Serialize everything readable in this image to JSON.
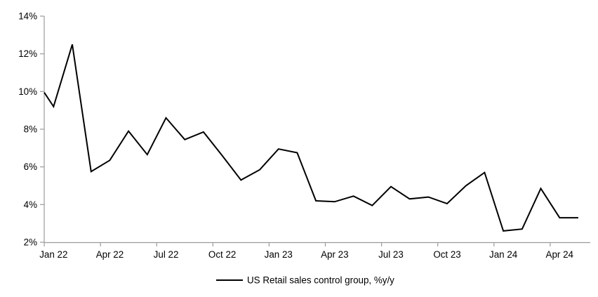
{
  "chart_data": {
    "type": "line",
    "x": [
      "Jan 22",
      "Feb 22",
      "Mar 22",
      "Apr 22",
      "May 22",
      "Jun 22",
      "Jul 22",
      "Aug 22",
      "Sep 22",
      "Oct 22",
      "Nov 22",
      "Dec 22",
      "Jan 23",
      "Feb 23",
      "Mar 23",
      "Apr 23",
      "May 23",
      "Jun 23",
      "Jul 23",
      "Aug 23",
      "Sep 23",
      "Oct 23",
      "Nov 23",
      "Dec 23",
      "Jan 24",
      "Feb 24",
      "Mar 24",
      "Apr 24",
      "May 24"
    ],
    "series": [
      {
        "name": "US Retail sales control group, %y/y",
        "color": "#000000",
        "values": [
          9.2,
          12.5,
          5.75,
          6.35,
          7.9,
          6.65,
          8.6,
          7.45,
          7.85,
          6.6,
          5.3,
          5.85,
          6.95,
          6.75,
          4.2,
          4.15,
          4.45,
          3.95,
          4.95,
          4.3,
          4.4,
          4.05,
          5.0,
          5.7,
          2.6,
          2.7,
          4.85,
          3.3,
          3.3
        ]
      }
    ],
    "clipped_start_value_at_axis": 9.95,
    "y_axis": {
      "min": 2,
      "max": 14,
      "step": 2,
      "tick_labels": [
        "2%",
        "4%",
        "6%",
        "8%",
        "10%",
        "12%",
        "14%"
      ]
    },
    "x_axis": {
      "tick_labels": [
        "Jan 22",
        "Apr 22",
        "Jul 22",
        "Oct 22",
        "Jan 23",
        "Apr 23",
        "Jul 23",
        "Oct 23",
        "Jan 24",
        "Apr 24"
      ],
      "months_per_tick": 3,
      "tick_style": "between-categories"
    },
    "legend": {
      "label": "US Retail sales control group, %y/y",
      "position": "bottom-center"
    },
    "grid": "off",
    "colors": {
      "background": "#ffffff",
      "axis": "#9b9b9b",
      "line": "#000000",
      "text": "#000000"
    }
  }
}
